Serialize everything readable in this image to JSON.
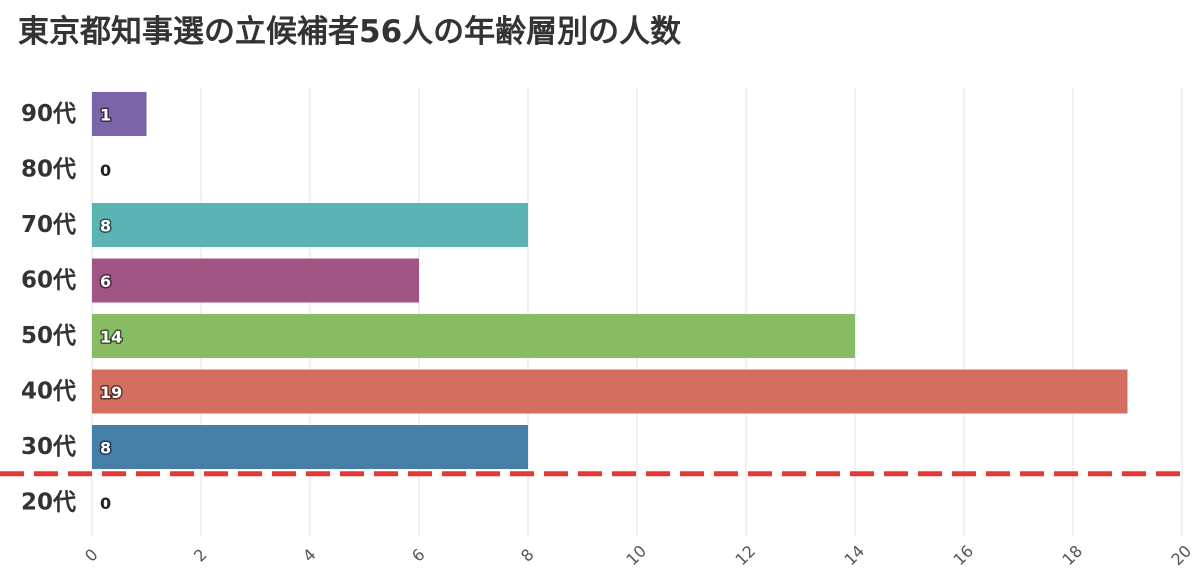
{
  "chart_data": {
    "type": "bar",
    "orientation": "horizontal",
    "title": "東京都知事選の立候補者56人の年齢層別の人数",
    "categories": [
      "90代",
      "80代",
      "70代",
      "60代",
      "50代",
      "40代",
      "30代",
      "20代"
    ],
    "values": [
      1,
      0,
      8,
      6,
      14,
      19,
      8,
      0
    ],
    "bar_colors": [
      "#7b64a8",
      "#7b64a8",
      "#5cb3b3",
      "#a15584",
      "#88bb64",
      "#d46e60",
      "#457fa8",
      "#457fa8"
    ],
    "xlim": [
      0,
      20
    ],
    "x_ticks": [
      "0",
      "2",
      "4",
      "6",
      "8",
      "10",
      "12",
      "14",
      "16",
      "18",
      "20"
    ],
    "grid": true,
    "annotation": {
      "type": "dashed-line",
      "between": [
        "30代",
        "20代"
      ],
      "color": "#e53935"
    }
  }
}
